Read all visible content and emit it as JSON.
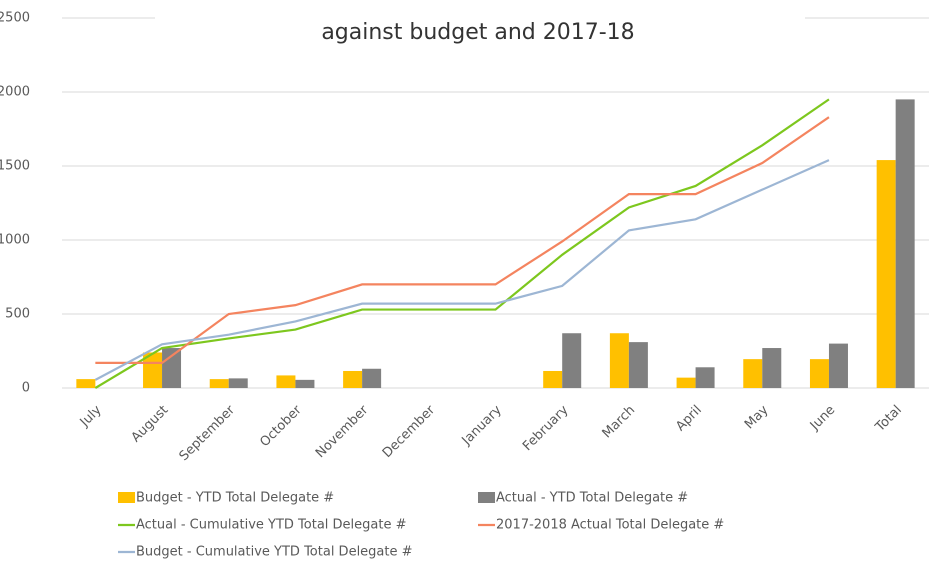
{
  "chart_data": {
    "type": "combo",
    "title": "against budget and 2017-18",
    "categories": [
      "July",
      "August",
      "September",
      "October",
      "November",
      "December",
      "January",
      "February",
      "March",
      "April",
      "May",
      "June",
      "Total"
    ],
    "series": [
      {
        "name": "Budget - YTD Total Delegate #",
        "type": "bar",
        "color": "#ffc000",
        "values": [
          60,
          240,
          60,
          85,
          115,
          null,
          null,
          115,
          370,
          70,
          195,
          195,
          1540
        ]
      },
      {
        "name": "Actual - YTD Total Delegate #",
        "type": "bar",
        "color": "#808080",
        "values": [
          null,
          270,
          65,
          55,
          130,
          null,
          null,
          370,
          310,
          140,
          270,
          300,
          1950
        ]
      },
      {
        "name": "Actual - Cumulative YTD Total Delegate #",
        "type": "line",
        "color": "#7dc71e",
        "values": [
          0,
          270,
          335,
          395,
          530,
          530,
          530,
          900,
          1220,
          1365,
          1640,
          1950,
          null
        ]
      },
      {
        "name": "2017-2018 Actual Total Delegate #",
        "type": "line",
        "color": "#f4845f",
        "values": [
          170,
          170,
          500,
          560,
          700,
          700,
          700,
          990,
          1310,
          1310,
          1520,
          1830,
          null
        ]
      },
      {
        "name": "Budget - Cumulative YTD Total Delegate #",
        "type": "line",
        "color": "#9db6d4",
        "values": [
          55,
          295,
          360,
          450,
          570,
          570,
          570,
          690,
          1065,
          1140,
          1340,
          1540,
          null
        ]
      }
    ],
    "ylim": [
      0,
      2500
    ],
    "yticks": [
      0,
      500,
      1000,
      1500,
      2000,
      2500
    ],
    "grid": true
  }
}
